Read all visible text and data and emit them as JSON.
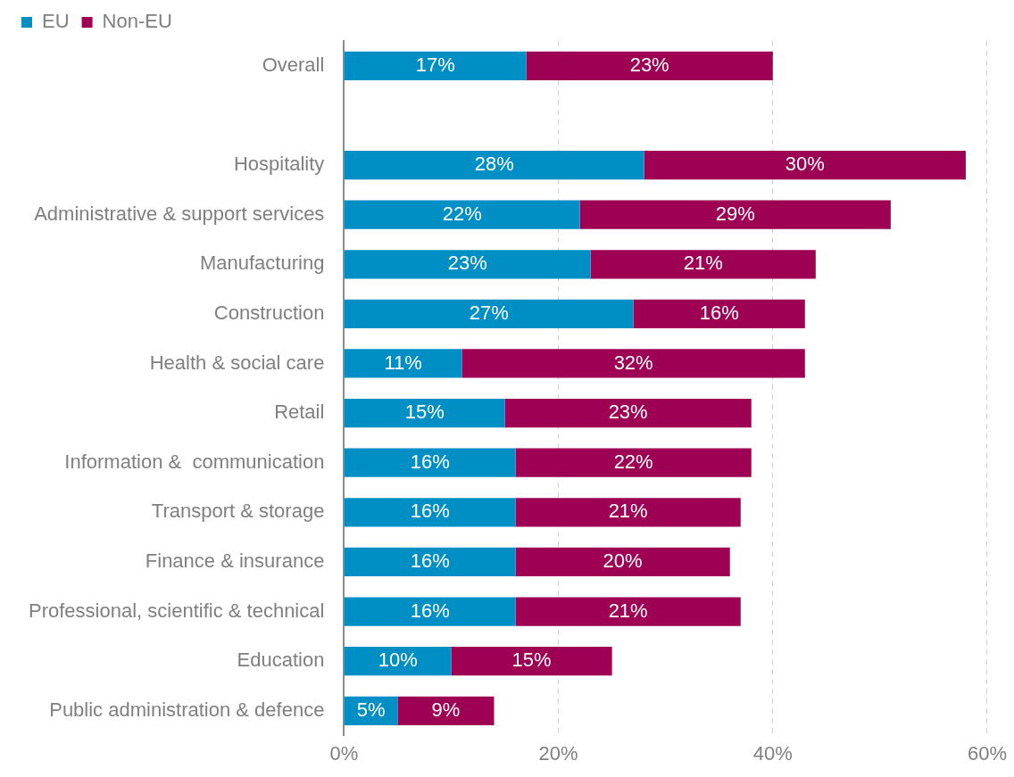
{
  "chart_data": {
    "type": "bar",
    "orientation": "horizontal",
    "stacked": true,
    "categories": [
      "Overall",
      null,
      "Hospitality",
      "Administrative & support services",
      "Manufacturing",
      "Construction",
      "Health & social care",
      "Retail",
      "Information &  communication",
      "Transport & storage",
      "Finance & insurance",
      "Professional, scientific & technical",
      "Education",
      "Public administration & defence"
    ],
    "series": [
      {
        "name": "EU",
        "color": "#008fc5",
        "values": [
          17,
          null,
          28,
          22,
          23,
          27,
          11,
          15,
          16,
          16,
          16,
          16,
          10,
          5
        ],
        "value_labels": [
          "17%",
          null,
          "28%",
          "22%",
          "23%",
          "27%",
          "11%",
          "15%",
          "16%",
          "16%",
          "16%",
          "16%",
          "10%",
          "5%"
        ]
      },
      {
        "name": "Non-EU",
        "color": "#9e0054",
        "values": [
          23,
          null,
          30,
          29,
          21,
          16,
          32,
          23,
          22,
          21,
          20,
          21,
          15,
          9
        ],
        "value_labels": [
          "23%",
          null,
          "30%",
          "29%",
          "21%",
          "16%",
          "32%",
          "23%",
          "22%",
          "21%",
          "20%",
          "21%",
          "15%",
          "9%"
        ]
      }
    ],
    "xlim": [
      0,
      60
    ],
    "xticks": [
      {
        "value": 0,
        "label": "0%"
      },
      {
        "value": 20,
        "label": "20%"
      },
      {
        "value": 40,
        "label": "40%"
      },
      {
        "value": 60,
        "label": "60%"
      }
    ],
    "grid": "x",
    "legend": "top left"
  }
}
